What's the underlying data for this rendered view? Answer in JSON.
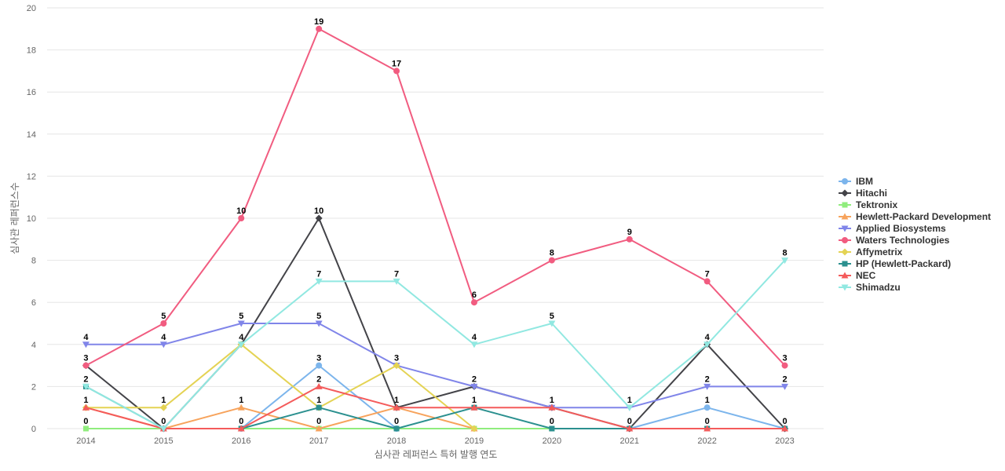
{
  "chart_data": {
    "type": "line",
    "title": "",
    "xlabel": "심사관 레퍼런스 특허 발행 연도",
    "ylabel": "심사관 레퍼런스수",
    "x": [
      "2014",
      "2015",
      "2016",
      "2017",
      "2018",
      "2019",
      "2020",
      "2021",
      "2022",
      "2023"
    ],
    "yticks": [
      "0",
      "2",
      "4",
      "6",
      "8",
      "10",
      "12",
      "14",
      "16",
      "18",
      "20"
    ],
    "ylim": [
      0,
      20
    ],
    "grid": true,
    "legend_position": "right",
    "series": [
      {
        "name": "IBM",
        "color": "#7cb5ec",
        "marker": "circle",
        "values": [
          null,
          0,
          0,
          3,
          0,
          null,
          null,
          0,
          1,
          0
        ],
        "labels": [
          null,
          null,
          null,
          "3",
          null,
          null,
          null,
          null,
          "1",
          null
        ]
      },
      {
        "name": "Hitachi",
        "color": "#434348",
        "marker": "diamond",
        "values": [
          3,
          0,
          4,
          10,
          1,
          2,
          1,
          0,
          4,
          0
        ],
        "labels": [
          "3",
          null,
          null,
          "10",
          null,
          "2",
          null,
          null,
          "4",
          null
        ]
      },
      {
        "name": "Tektronix",
        "color": "#90ed7d",
        "marker": "square",
        "values": [
          0,
          0,
          0,
          0,
          0,
          0,
          0,
          0,
          0,
          0
        ],
        "labels": [
          "0",
          null,
          null,
          null,
          null,
          null,
          null,
          null,
          null,
          null
        ]
      },
      {
        "name": "Hewlett-Packard Development",
        "color": "#f7a35c",
        "marker": "triangle",
        "values": [
          1,
          0,
          1,
          0,
          1,
          0,
          null,
          null,
          null,
          null
        ],
        "labels": [
          null,
          null,
          "1",
          "0",
          null,
          null,
          null,
          null,
          null,
          null
        ]
      },
      {
        "name": "Applied Biosystems",
        "color": "#8085e9",
        "marker": "triangle-down",
        "values": [
          4,
          4,
          5,
          5,
          3,
          2,
          1,
          1,
          2,
          2
        ],
        "labels": [
          "4",
          "4",
          "5",
          "5",
          "3",
          null,
          "1",
          "1",
          "2",
          "2"
        ]
      },
      {
        "name": "Waters Technologies",
        "color": "#f15c80",
        "marker": "circle",
        "values": [
          3,
          5,
          10,
          19,
          17,
          6,
          8,
          9,
          7,
          3
        ],
        "labels": [
          null,
          "5",
          "10",
          "19",
          "17",
          "6",
          "8",
          "9",
          "7",
          "3"
        ]
      },
      {
        "name": "Affymetrix",
        "color": "#e4d354",
        "marker": "diamond",
        "values": [
          1,
          1,
          4,
          1,
          3,
          0,
          null,
          null,
          null,
          null
        ],
        "labels": [
          null,
          "1",
          null,
          null,
          null,
          null,
          null,
          null,
          null,
          null
        ]
      },
      {
        "name": "HP (Hewlett-Packard)",
        "color": "#2b908f",
        "marker": "square",
        "values": [
          2,
          0,
          0,
          1,
          0,
          1,
          0,
          0,
          0,
          0
        ],
        "labels": [
          "2",
          "0",
          "0",
          "1",
          "0",
          "1",
          "0",
          "0",
          "0",
          "0"
        ]
      },
      {
        "name": "NEC",
        "color": "#f45b5b",
        "marker": "triangle",
        "values": [
          1,
          0,
          0,
          2,
          1,
          1,
          1,
          0,
          0,
          0
        ],
        "labels": [
          "1",
          null,
          null,
          "2",
          "1",
          null,
          null,
          null,
          null,
          null
        ]
      },
      {
        "name": "Shimadzu",
        "color": "#91e8e1",
        "marker": "triangle-down",
        "values": [
          2,
          0,
          4,
          7,
          7,
          4,
          5,
          1,
          4,
          8
        ],
        "labels": [
          null,
          null,
          "4",
          "7",
          "7",
          "4",
          "5",
          null,
          null,
          "8"
        ]
      }
    ]
  }
}
